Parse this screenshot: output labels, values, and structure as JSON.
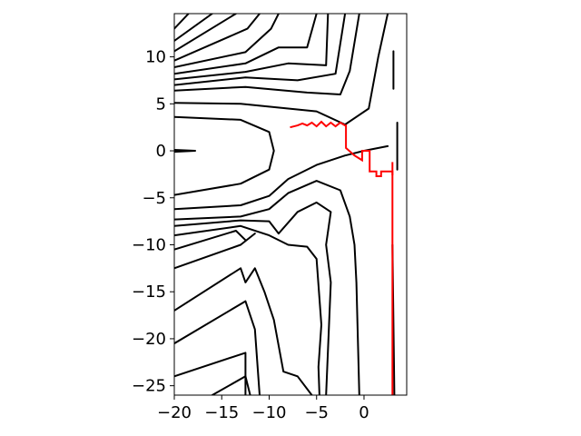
{
  "chart_data": {
    "type": "contour",
    "title": "",
    "xlabel": "",
    "ylabel": "",
    "xlim": [
      -20,
      4.5
    ],
    "ylim": [
      -26,
      14.6
    ],
    "x_ticks": [
      -20,
      -15,
      -10,
      -5,
      0
    ],
    "x_tick_labels": [
      "−20",
      "−15",
      "−10",
      "−5",
      "0"
    ],
    "y_ticks": [
      -25,
      -20,
      -15,
      -10,
      -5,
      0,
      5,
      10
    ],
    "y_tick_labels": [
      "−25",
      "−20",
      "−15",
      "−10",
      "−5",
      "0",
      "5",
      "10"
    ],
    "grid": false,
    "colors": {
      "contour": "#000000",
      "path": "#ff0000"
    },
    "contour_lines": [
      [
        [
          -20,
          13.0
        ],
        [
          -18.5,
          14.6
        ]
      ],
      [
        [
          -20,
          11.7
        ],
        [
          -16.0,
          14.6
        ]
      ],
      [
        [
          -20,
          10.6
        ],
        [
          -13.5,
          14.6
        ]
      ],
      [
        [
          -20,
          9.6
        ],
        [
          -12.3,
          13.0
        ],
        [
          -11.0,
          14.6
        ]
      ],
      [
        [
          -20,
          8.9
        ],
        [
          -12.5,
          10.5
        ],
        [
          -9.8,
          13.0
        ],
        [
          -9.0,
          14.6
        ]
      ],
      [
        [
          -20,
          8.2
        ],
        [
          -12.5,
          9.3
        ],
        [
          -9.0,
          11.0
        ],
        [
          -6.0,
          11.0
        ],
        [
          -5.0,
          14.6
        ]
      ],
      [
        [
          -20,
          7.6
        ],
        [
          -12.5,
          8.4
        ],
        [
          -8.0,
          9.3
        ],
        [
          -4.0,
          9.1
        ],
        [
          -3.8,
          14.6
        ]
      ],
      [
        [
          -20,
          7.0
        ],
        [
          -12.5,
          7.8
        ],
        [
          -7.0,
          7.5
        ],
        [
          -3.0,
          8.2
        ],
        [
          -2.0,
          14.6
        ]
      ],
      [
        [
          -20,
          6.4
        ],
        [
          -12.5,
          6.8
        ],
        [
          -6.0,
          6.2
        ],
        [
          -2.5,
          6.0
        ],
        [
          -1.5,
          8.5
        ],
        [
          -0.5,
          14.6
        ]
      ],
      [
        [
          -20,
          5.1
        ],
        [
          -13.0,
          5.0
        ],
        [
          -5.0,
          4.2
        ],
        [
          -2.0,
          2.8
        ],
        [
          0.5,
          4.5
        ],
        [
          1.5,
          10.0
        ],
        [
          2.5,
          14.6
        ]
      ],
      [
        [
          -20,
          3.6
        ],
        [
          -13.0,
          3.3
        ],
        [
          -10.0,
          2.0
        ],
        [
          -9.5,
          0.0
        ],
        [
          -10.0,
          -2.0
        ],
        [
          -13.0,
          -3.5
        ],
        [
          -20,
          -4.7
        ]
      ],
      [
        [
          -20,
          0.1
        ],
        [
          -17.8,
          0.0
        ],
        [
          -20,
          -0.1
        ]
      ],
      [
        [
          -20,
          -6.2
        ],
        [
          -13.0,
          -5.8
        ],
        [
          -10.0,
          -4.8
        ],
        [
          -8.0,
          -3.0
        ],
        [
          -5.0,
          -1.5
        ],
        [
          -2.0,
          -0.5
        ],
        [
          0.0,
          0.0
        ],
        [
          2.5,
          0.5
        ]
      ],
      [
        [
          -20,
          -7.3
        ],
        [
          -13.0,
          -7.0
        ],
        [
          -10.0,
          -6.2
        ],
        [
          -8.0,
          -4.5
        ],
        [
          -5.0,
          -3.2
        ],
        [
          -2.5,
          -4.2
        ],
        [
          -1.5,
          -7.0
        ],
        [
          -1.0,
          -10.0
        ],
        [
          -0.8,
          -14.0
        ],
        [
          -0.5,
          -26.0
        ]
      ],
      [
        [
          -20,
          -8.0
        ],
        [
          -13.0,
          -7.4
        ],
        [
          -10.0,
          -7.5
        ],
        [
          -9.0,
          -8.8
        ],
        [
          -7.0,
          -6.5
        ],
        [
          -5.0,
          -5.5
        ],
        [
          -3.5,
          -6.5
        ],
        [
          -4.0,
          -10.0
        ],
        [
          -3.5,
          -14.0
        ],
        [
          -4.0,
          -26.0
        ]
      ],
      [
        [
          -20,
          -9.0
        ],
        [
          -13.0,
          -8.0
        ],
        [
          -10.0,
          -9.0
        ],
        [
          -8.0,
          -10.0
        ],
        [
          -6.0,
          -10.2
        ],
        [
          -5.0,
          -11.5
        ],
        [
          -4.5,
          -18.5
        ],
        [
          -4.8,
          -23.0
        ],
        [
          -4.7,
          -26.0
        ]
      ],
      [
        [
          -20,
          -10.5
        ],
        [
          -13.5,
          -8.5
        ],
        [
          -12.5,
          -9.5
        ]
      ],
      [
        [
          -20,
          -12.5
        ],
        [
          -13.0,
          -10.0
        ],
        [
          -11.5,
          -8.8
        ]
      ],
      [
        [
          -20,
          -17.0
        ],
        [
          -13.0,
          -12.5
        ],
        [
          -12.5,
          -14.0
        ],
        [
          -11.5,
          -12.5
        ],
        [
          -10.5,
          -15.0
        ],
        [
          -9.5,
          -18.0
        ],
        [
          -8.5,
          -23.5
        ],
        [
          -7.0,
          -24.0
        ],
        [
          -5.5,
          -26.0
        ]
      ],
      [
        [
          -20,
          -20.5
        ],
        [
          -12.5,
          -16.0
        ],
        [
          -11.5,
          -19.0
        ],
        [
          -11.0,
          -26.0
        ]
      ],
      [
        [
          -20,
          -24.0
        ],
        [
          -12.5,
          -21.5
        ],
        [
          -12.5,
          -26.0
        ]
      ],
      [
        [
          -16.0,
          -26.0
        ],
        [
          -12.5,
          -24.0
        ],
        [
          -12.0,
          -26.0
        ]
      ],
      [
        [
          3.0,
          -10.0
        ],
        [
          3.2,
          -26.0
        ]
      ],
      [
        [
          3.1,
          10.6
        ],
        [
          3.1,
          6.6
        ]
      ],
      [
        [
          3.5,
          3.0
        ],
        [
          3.5,
          -2.0
        ]
      ]
    ],
    "path": [
      [
        -7.8,
        2.5
      ],
      [
        -7.0,
        2.7
      ],
      [
        -6.5,
        2.9
      ],
      [
        -6.0,
        2.7
      ],
      [
        -5.5,
        3.0
      ],
      [
        -5.0,
        2.6
      ],
      [
        -4.5,
        3.1
      ],
      [
        -4.0,
        2.6
      ],
      [
        -3.5,
        3.0
      ],
      [
        -3.0,
        2.6
      ],
      [
        -2.5,
        3.0
      ],
      [
        -2.0,
        2.7
      ],
      [
        -1.9,
        2.7
      ],
      [
        -1.9,
        0.3
      ],
      [
        -1.0,
        -0.5
      ],
      [
        -0.2,
        -1.0
      ],
      [
        -0.2,
        0.0
      ],
      [
        0.6,
        0.0
      ],
      [
        0.6,
        -2.2
      ],
      [
        1.3,
        -2.2
      ],
      [
        1.3,
        -2.7
      ],
      [
        1.8,
        -2.7
      ],
      [
        1.8,
        -2.2
      ],
      [
        3.0,
        -2.2
      ],
      [
        3.0,
        -26.0
      ]
    ],
    "path_extra": [
      [
        3.0,
        -1.2
      ],
      [
        3.0,
        -2.6
      ]
    ]
  }
}
